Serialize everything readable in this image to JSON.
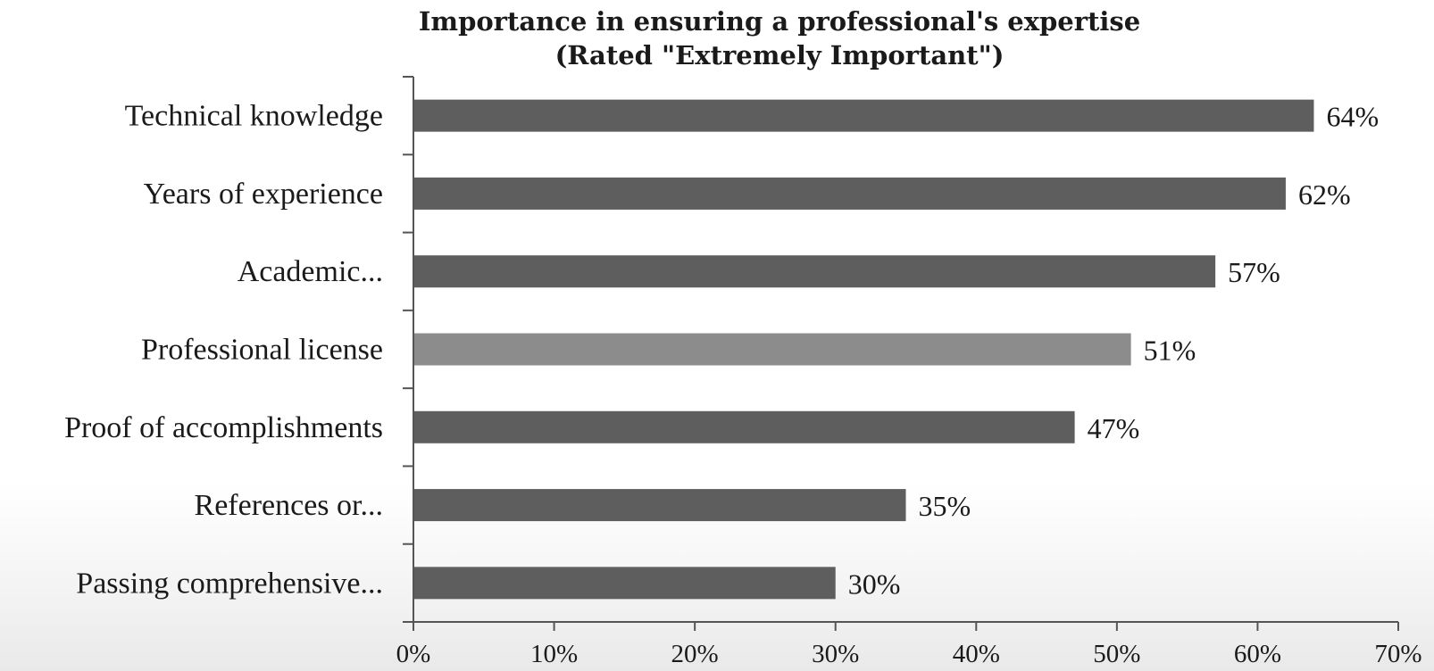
{
  "chart_data": {
    "type": "bar",
    "orientation": "horizontal",
    "title": "Importance in ensuring a professional's expertise",
    "subtitle": "(Rated \"Extremely Important\")",
    "categories": [
      "Technical knowledge",
      "Years of experience",
      "Academic...",
      "Professional license",
      "Proof of accomplishments",
      "References or...",
      "Passing comprehensive..."
    ],
    "values": [
      64,
      62,
      57,
      51,
      47,
      35,
      30
    ],
    "value_labels": [
      "64%",
      "62%",
      "57%",
      "51%",
      "47%",
      "35%",
      "30%"
    ],
    "highlight_index": 3,
    "xlim": [
      0,
      70
    ],
    "x_ticks": [
      0,
      10,
      20,
      30,
      40,
      50,
      60,
      70
    ],
    "x_tick_labels": [
      "0%",
      "10%",
      "20%",
      "30%",
      "40%",
      "50%",
      "60%",
      "70%"
    ],
    "xlabel": "",
    "ylabel": "",
    "grid": false,
    "legend": "none",
    "colors": {
      "bar": "#5e5e5e",
      "highlight_bar": "#8c8c8c",
      "axis": "#555555",
      "text": "#1a1a1a"
    }
  }
}
